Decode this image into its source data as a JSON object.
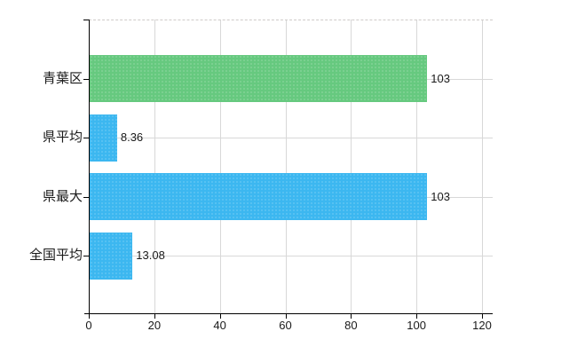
{
  "chart_data": {
    "type": "bar",
    "orientation": "horizontal",
    "title": "",
    "xlabel": "",
    "ylabel": "",
    "categories": [
      "青葉区",
      "県平均",
      "県最大",
      "全国平均"
    ],
    "values": [
      103,
      8.36,
      103,
      13.08
    ],
    "value_labels": [
      "103",
      "8.36",
      "103",
      "13.08"
    ],
    "bar_colors": [
      "#66c97f",
      "#3cb7f0",
      "#3cb7f0",
      "#3cb7f0"
    ],
    "x_ticks": [
      0,
      20,
      40,
      60,
      80,
      100,
      120
    ],
    "x_tick_labels": [
      "0",
      "20",
      "40",
      "60",
      "80",
      "100",
      "120"
    ],
    "xlim": [
      0,
      123
    ],
    "grid": true,
    "grid_horizontal_at_category_centers": true,
    "legend": false,
    "colors": {
      "background": "#ffffff",
      "axis": "#000000",
      "grid": "#d8d8d8",
      "plot_top_dashed_border": "#cfcbc9",
      "text": "#1a1a1a",
      "green_bar": "#66c97f",
      "blue_bar": "#3cb7f0"
    }
  }
}
